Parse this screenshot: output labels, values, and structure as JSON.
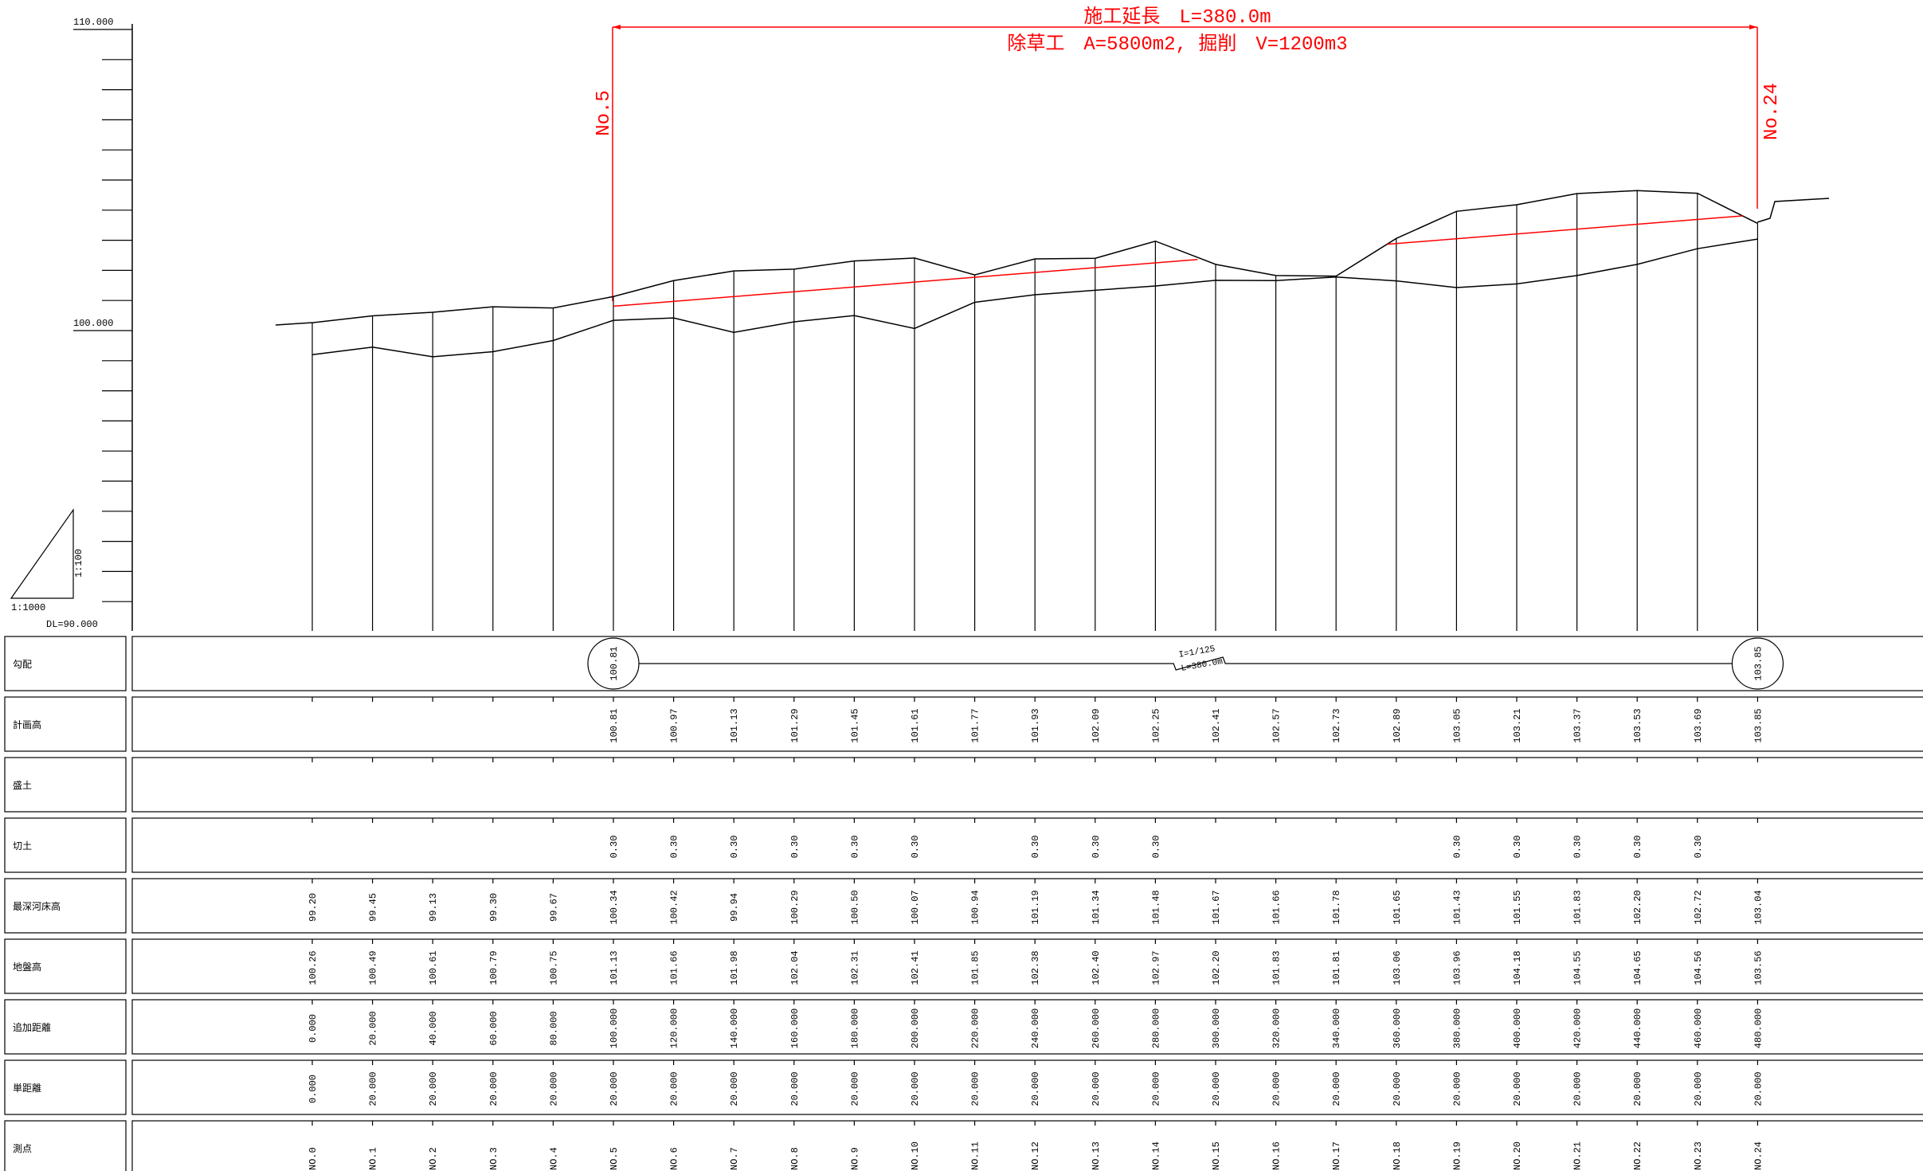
{
  "scale": {
    "top_label": "110.000",
    "mid_label": "100.000",
    "datum": "DL=90.000",
    "vertical_ratio": "1:100",
    "horizontal_ratio": "1:1000"
  },
  "header": {
    "line1": "施工延長　L=380.0m",
    "line2": "除草工　A=5800m2, 掘削　V=1200m3",
    "start_station": "No.5",
    "end_station": "No.24"
  },
  "colors": {
    "accent": "#ff0000",
    "line": "#000000"
  },
  "gradient": {
    "start_value": "100.81",
    "end_value": "103.85",
    "slope": "I=1/125",
    "length": "L=380.0m"
  },
  "rows": [
    {
      "key": "gradient",
      "label": "勾配"
    },
    {
      "key": "plan",
      "label": "計画高"
    },
    {
      "key": "fill",
      "label": "盛土"
    },
    {
      "key": "cut",
      "label": "切土"
    },
    {
      "key": "bed",
      "label": "最深河床高"
    },
    {
      "key": "ground",
      "label": "地盤高"
    },
    {
      "key": "cum",
      "label": "追加距離"
    },
    {
      "key": "single",
      "label": "単距離"
    },
    {
      "key": "station",
      "label": "測点"
    }
  ],
  "chart_data": {
    "type": "line",
    "title": "",
    "x_label": "",
    "y_label": "",
    "y_range": [
      90,
      110
    ],
    "stations": [
      "NO.0",
      "NO.1",
      "NO.2",
      "NO.3",
      "NO.4",
      "NO.5",
      "NO.6",
      "NO.7",
      "NO.8",
      "NO.9",
      "NO.10",
      "NO.11",
      "NO.12",
      "NO.13",
      "NO.14",
      "NO.15",
      "NO.16",
      "NO.17",
      "NO.18",
      "NO.19",
      "NO.20",
      "NO.21",
      "NO.22",
      "NO.23",
      "NO.24"
    ],
    "cumulative_distance": [
      "0.000",
      "20.000",
      "40.000",
      "60.000",
      "80.000",
      "100.000",
      "120.000",
      "140.000",
      "160.000",
      "180.000",
      "200.000",
      "220.000",
      "240.000",
      "260.000",
      "280.000",
      "300.000",
      "320.000",
      "340.000",
      "360.000",
      "380.000",
      "400.000",
      "420.000",
      "440.000",
      "460.000",
      "480.000"
    ],
    "single_distance": [
      "0.000",
      "20.000",
      "20.000",
      "20.000",
      "20.000",
      "20.000",
      "20.000",
      "20.000",
      "20.000",
      "20.000",
      "20.000",
      "20.000",
      "20.000",
      "20.000",
      "20.000",
      "20.000",
      "20.000",
      "20.000",
      "20.000",
      "20.000",
      "20.000",
      "20.000",
      "20.000",
      "20.000",
      "20.000"
    ],
    "plan_height": [
      "",
      "",
      "",
      "",
      "",
      "100.81",
      "100.97",
      "101.13",
      "101.29",
      "101.45",
      "101.61",
      "101.77",
      "101.93",
      "102.09",
      "102.25",
      "102.41",
      "102.57",
      "102.73",
      "102.89",
      "103.05",
      "103.21",
      "103.37",
      "103.53",
      "103.69",
      "103.85"
    ],
    "fill": [
      "",
      "",
      "",
      "",
      "",
      "",
      "",
      "",
      "",
      "",
      "",
      "",
      "",
      "",
      "",
      "",
      "",
      "",
      "",
      "",
      "",
      "",
      "",
      "",
      ""
    ],
    "cut": [
      "",
      "",
      "",
      "",
      "",
      "0.30",
      "0.30",
      "0.30",
      "0.30",
      "0.30",
      "0.30",
      "",
      "0.30",
      "0.30",
      "0.30",
      "",
      "",
      "",
      "",
      "0.30",
      "0.30",
      "0.30",
      "0.30",
      "0.30",
      ""
    ],
    "deepest_bed": [
      "99.20",
      "99.45",
      "99.13",
      "99.30",
      "99.67",
      "100.34",
      "100.42",
      "99.94",
      "100.29",
      "100.50",
      "100.07",
      "100.94",
      "101.19",
      "101.34",
      "101.48",
      "101.67",
      "101.66",
      "101.78",
      "101.65",
      "101.43",
      "101.55",
      "101.83",
      "102.20",
      "102.72",
      "103.04"
    ],
    "ground_height": [
      "100.26",
      "100.49",
      "100.61",
      "100.79",
      "100.75",
      "101.13",
      "101.66",
      "101.98",
      "102.04",
      "102.31",
      "102.41",
      "101.85",
      "102.38",
      "102.40",
      "102.97",
      "102.20",
      "101.83",
      "101.81",
      "103.06",
      "103.96",
      "104.18",
      "104.55",
      "104.65",
      "104.56",
      "103.56"
    ]
  }
}
